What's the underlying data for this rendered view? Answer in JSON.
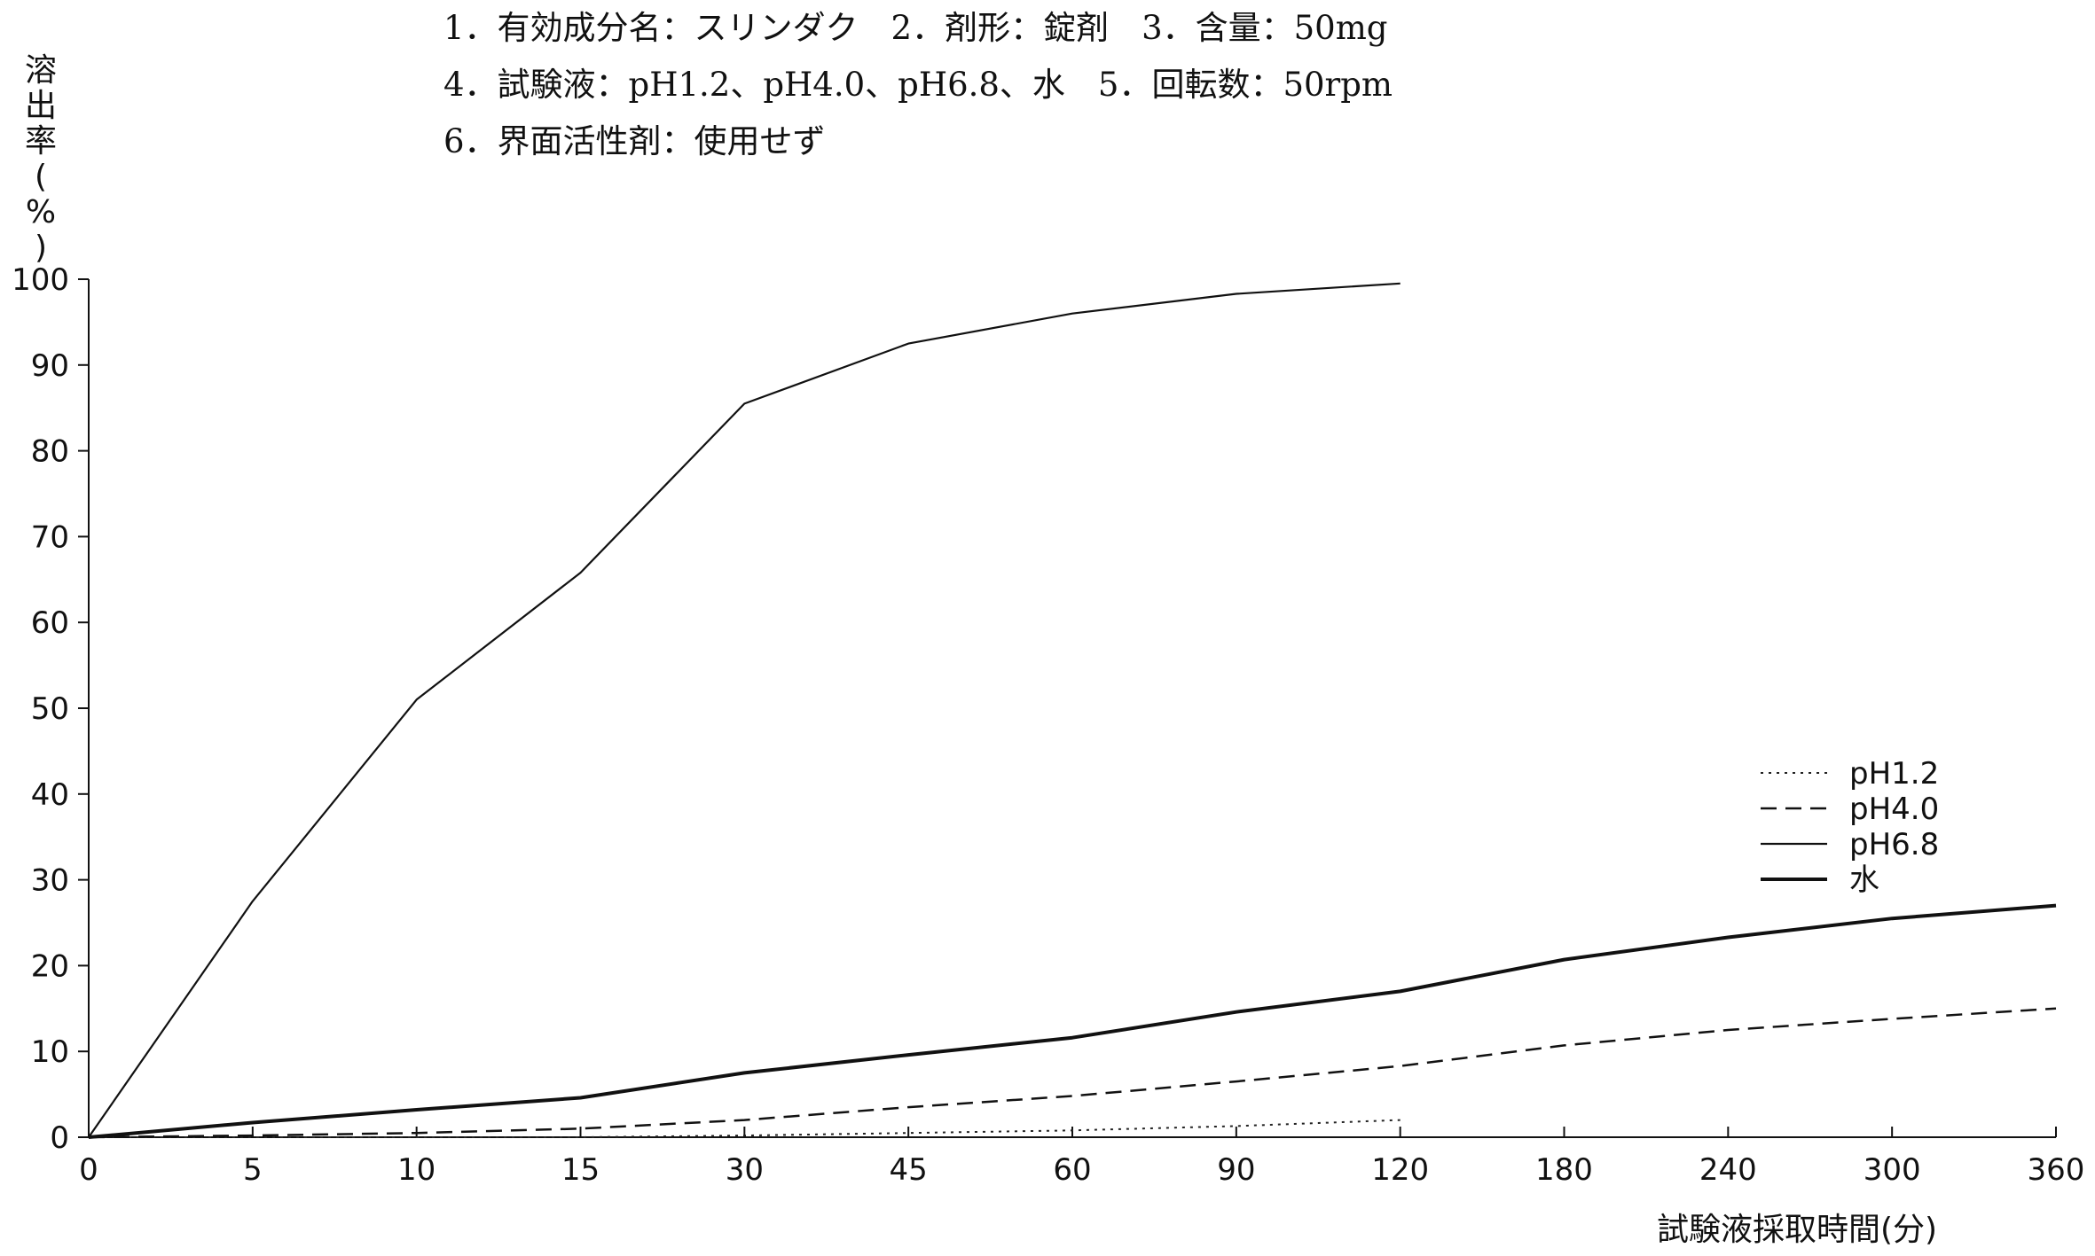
{
  "header": {
    "line1": "1．有効成分名：スリンダク　2．剤形：錠剤　3．含量：50mg",
    "line2": "4．試験液：pH1.2、pH4.0、pH6.8、水　5．回転数：50rpm",
    "line3": "6．界面活性剤：使用せず"
  },
  "chart_data": {
    "type": "line",
    "title": "",
    "ylabel": "溶出率(%)",
    "xlabel": "試験液採取時間(分)",
    "categories": [
      "0",
      "5",
      "10",
      "15",
      "30",
      "45",
      "60",
      "90",
      "120",
      "180",
      "240",
      "300",
      "360"
    ],
    "ylim": [
      0,
      100
    ],
    "yticks": [
      "0",
      "10",
      "20",
      "30",
      "40",
      "50",
      "60",
      "70",
      "80",
      "90",
      "100"
    ],
    "legend_position": "right",
    "series": [
      {
        "name": "pH1.2",
        "style": "dotted",
        "values": [
          0,
          0,
          0,
          0,
          0.2,
          0.5,
          0.8,
          1.3,
          2.0,
          null,
          null,
          null,
          null
        ]
      },
      {
        "name": "pH4.0",
        "style": "dashed",
        "values": [
          0,
          0.2,
          0.5,
          1.0,
          2.0,
          3.5,
          4.8,
          6.5,
          8.3,
          10.7,
          12.5,
          13.8,
          15.0
        ]
      },
      {
        "name": "pH6.8",
        "style": "solid-thin",
        "values": [
          0,
          27.5,
          51,
          65.8,
          85.5,
          92.5,
          96,
          98.3,
          99.5,
          null,
          null,
          null,
          null
        ]
      },
      {
        "name": "水",
        "style": "solid-thick",
        "values": [
          0,
          1.7,
          3.2,
          4.6,
          7.5,
          9.6,
          11.6,
          14.6,
          17.0,
          20.7,
          23.3,
          25.5,
          27.0
        ]
      }
    ]
  }
}
